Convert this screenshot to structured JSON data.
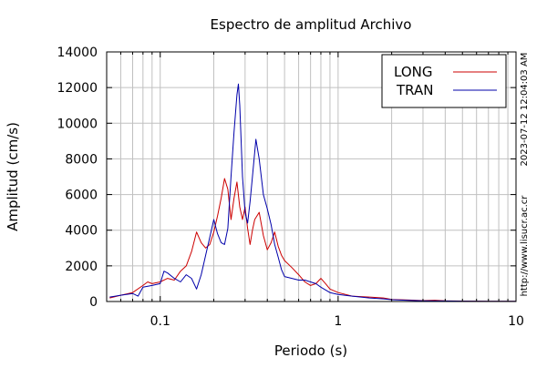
{
  "chart_data": {
    "type": "line",
    "title": "Espectro de amplitud Archivo",
    "xlabel": "Periodo (s)",
    "ylabel": "Amplitud (cm/s)",
    "xscale": "log",
    "xlim": [
      0.05,
      10
    ],
    "ylim": [
      0,
      14000
    ],
    "x_ticks": [
      0.1,
      1,
      10
    ],
    "x_tick_labels": [
      "0.1",
      "1",
      "10"
    ],
    "y_ticks": [
      0,
      2000,
      4000,
      6000,
      8000,
      10000,
      12000,
      14000
    ],
    "y_tick_labels": [
      "0",
      "2000",
      "4000",
      "6000",
      "8000",
      "10000",
      "12000",
      "14000"
    ],
    "grid": true,
    "legend_position": "top-right",
    "timestamp": "2023-07-12 12:04:03 AM",
    "source_url": "http://www.lisucr.ac.cr",
    "series": [
      {
        "name": "LONG",
        "color": "#cc0000",
        "points": [
          [
            0.052,
            200
          ],
          [
            0.06,
            350
          ],
          [
            0.07,
            500
          ],
          [
            0.08,
            900
          ],
          [
            0.085,
            1100
          ],
          [
            0.09,
            1000
          ],
          [
            0.1,
            1100
          ],
          [
            0.11,
            1300
          ],
          [
            0.12,
            1200
          ],
          [
            0.13,
            1700
          ],
          [
            0.14,
            2000
          ],
          [
            0.15,
            2800
          ],
          [
            0.16,
            3900
          ],
          [
            0.17,
            3300
          ],
          [
            0.18,
            3000
          ],
          [
            0.19,
            3200
          ],
          [
            0.2,
            3900
          ],
          [
            0.21,
            4800
          ],
          [
            0.22,
            5800
          ],
          [
            0.23,
            6900
          ],
          [
            0.24,
            6300
          ],
          [
            0.25,
            4600
          ],
          [
            0.26,
            5800
          ],
          [
            0.27,
            6700
          ],
          [
            0.28,
            5300
          ],
          [
            0.29,
            4600
          ],
          [
            0.3,
            5300
          ],
          [
            0.31,
            4100
          ],
          [
            0.32,
            3200
          ],
          [
            0.33,
            4000
          ],
          [
            0.34,
            4600
          ],
          [
            0.36,
            5000
          ],
          [
            0.38,
            3700
          ],
          [
            0.4,
            2900
          ],
          [
            0.42,
            3300
          ],
          [
            0.44,
            3900
          ],
          [
            0.46,
            3100
          ],
          [
            0.48,
            2600
          ],
          [
            0.5,
            2300
          ],
          [
            0.55,
            1900
          ],
          [
            0.6,
            1500
          ],
          [
            0.65,
            1100
          ],
          [
            0.7,
            900
          ],
          [
            0.75,
            1000
          ],
          [
            0.8,
            1300
          ],
          [
            0.85,
            1000
          ],
          [
            0.9,
            700
          ],
          [
            1.0,
            500
          ],
          [
            1.2,
            300
          ],
          [
            1.5,
            250
          ],
          [
            1.8,
            200
          ],
          [
            2.0,
            120
          ],
          [
            2.5,
            80
          ],
          [
            3.0,
            50
          ],
          [
            3.5,
            70
          ],
          [
            4.0,
            40
          ],
          [
            5.0,
            25
          ],
          [
            7.0,
            15
          ],
          [
            10.0,
            10
          ]
        ]
      },
      {
        "name": "TRAN",
        "color": "#0000aa",
        "points": [
          [
            0.052,
            250
          ],
          [
            0.06,
            350
          ],
          [
            0.07,
            450
          ],
          [
            0.075,
            300
          ],
          [
            0.08,
            800
          ],
          [
            0.09,
            900
          ],
          [
            0.1,
            1000
          ],
          [
            0.105,
            1700
          ],
          [
            0.11,
            1600
          ],
          [
            0.12,
            1300
          ],
          [
            0.13,
            1100
          ],
          [
            0.14,
            1500
          ],
          [
            0.15,
            1300
          ],
          [
            0.16,
            700
          ],
          [
            0.17,
            1500
          ],
          [
            0.18,
            2600
          ],
          [
            0.19,
            3600
          ],
          [
            0.2,
            4600
          ],
          [
            0.21,
            3800
          ],
          [
            0.22,
            3300
          ],
          [
            0.23,
            3200
          ],
          [
            0.24,
            4100
          ],
          [
            0.25,
            7000
          ],
          [
            0.26,
            9500
          ],
          [
            0.27,
            11600
          ],
          [
            0.275,
            12200
          ],
          [
            0.28,
            11000
          ],
          [
            0.29,
            7000
          ],
          [
            0.3,
            5000
          ],
          [
            0.31,
            4400
          ],
          [
            0.32,
            5600
          ],
          [
            0.33,
            7000
          ],
          [
            0.345,
            9100
          ],
          [
            0.36,
            8000
          ],
          [
            0.38,
            6000
          ],
          [
            0.4,
            5200
          ],
          [
            0.42,
            4300
          ],
          [
            0.44,
            3200
          ],
          [
            0.46,
            2500
          ],
          [
            0.48,
            1800
          ],
          [
            0.5,
            1400
          ],
          [
            0.55,
            1300
          ],
          [
            0.6,
            1200
          ],
          [
            0.65,
            1200
          ],
          [
            0.7,
            1100
          ],
          [
            0.75,
            1000
          ],
          [
            0.8,
            800
          ],
          [
            0.9,
            500
          ],
          [
            1.0,
            400
          ],
          [
            1.2,
            300
          ],
          [
            1.5,
            200
          ],
          [
            1.8,
            150
          ],
          [
            2.0,
            100
          ],
          [
            2.5,
            60
          ],
          [
            3.0,
            40
          ],
          [
            4.0,
            30
          ],
          [
            5.0,
            20
          ],
          [
            7.0,
            15
          ],
          [
            10.0,
            10
          ]
        ]
      }
    ]
  }
}
